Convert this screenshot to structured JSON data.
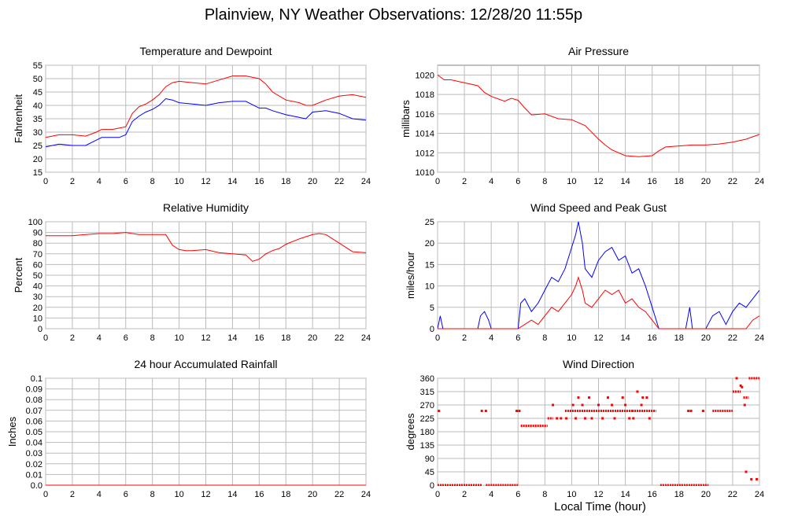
{
  "title": "Plainview, NY Weather Observations: 12/28/20 11:55p",
  "x_axis_label": "Local Time (hour)",
  "colors": {
    "red": "#ff0000",
    "blue": "#0000ff",
    "grid": "#bbbbbb",
    "frame": "#808080"
  },
  "chart_data": [
    {
      "id": "temp",
      "type": "line",
      "title": "Temperature and Dewpoint",
      "ylabel": "Fahrenheit",
      "xlim": [
        0,
        24
      ],
      "ylim": [
        15,
        55
      ],
      "xticks": [
        0,
        2,
        4,
        6,
        8,
        10,
        12,
        14,
        16,
        18,
        20,
        22,
        24
      ],
      "yticks": [
        15,
        20,
        25,
        30,
        35,
        40,
        45,
        50,
        55
      ],
      "grid": true,
      "series": [
        {
          "color": "#ff0000",
          "x": [
            0,
            1,
            2,
            3,
            3.8,
            4.2,
            5,
            5.5,
            6,
            6.5,
            7,
            7.5,
            8,
            8.5,
            9,
            9.5,
            10,
            11,
            12,
            13,
            14,
            15,
            16,
            16.5,
            17,
            18,
            19,
            19.5,
            20,
            21,
            22,
            23,
            24
          ],
          "y": [
            28,
            29,
            29,
            28.5,
            30,
            31,
            31,
            31.5,
            32,
            37,
            39.5,
            40.5,
            42,
            44,
            47,
            48.5,
            49,
            48.5,
            48,
            49.5,
            51,
            51,
            50,
            48,
            45,
            42,
            41,
            40,
            40,
            42,
            43.5,
            44,
            43
          ]
        },
        {
          "color": "#0000ff",
          "x": [
            0,
            1,
            2,
            3,
            3.8,
            4.2,
            5,
            5.5,
            6,
            6.5,
            7,
            7.5,
            8,
            8.5,
            9,
            9.5,
            10,
            11,
            12,
            13,
            14,
            15,
            16,
            16.5,
            17,
            18,
            19,
            19.5,
            20,
            21,
            22,
            23,
            24
          ],
          "y": [
            24.5,
            25.5,
            25,
            25,
            27,
            28,
            28,
            28,
            29,
            34,
            36,
            37.5,
            38.5,
            40,
            42.5,
            42,
            41,
            40.5,
            40,
            41,
            41.5,
            41.5,
            39,
            39,
            38,
            36.5,
            35.5,
            35,
            37.5,
            38,
            37,
            35,
            34.5
          ]
        }
      ]
    },
    {
      "id": "pressure",
      "type": "line",
      "title": "Air Pressure",
      "ylabel": "millibars",
      "xlim": [
        0,
        24
      ],
      "ylim": [
        1010,
        1021
      ],
      "xticks": [
        0,
        2,
        4,
        6,
        8,
        10,
        12,
        14,
        16,
        18,
        20,
        22,
        24
      ],
      "yticks": [
        1010,
        1012,
        1014,
        1016,
        1018,
        1020
      ],
      "grid": true,
      "series": [
        {
          "color": "#ff0000",
          "x": [
            0,
            0.5,
            1,
            2,
            3,
            3.5,
            4,
            5,
            5.5,
            6,
            6.5,
            7,
            8,
            9,
            10,
            10.5,
            11,
            11.5,
            12,
            12.5,
            13,
            14,
            15,
            16,
            16.5,
            17,
            18,
            19,
            20,
            21,
            22,
            23,
            24
          ],
          "y": [
            1020,
            1019.5,
            1019.5,
            1019.2,
            1018.9,
            1018.2,
            1017.8,
            1017.3,
            1017.6,
            1017.4,
            1016.6,
            1015.9,
            1016,
            1015.5,
            1015.4,
            1015.1,
            1014.8,
            1014.1,
            1013.4,
            1012.8,
            1012.3,
            1011.7,
            1011.6,
            1011.7,
            1012.2,
            1012.6,
            1012.7,
            1012.8,
            1012.8,
            1012.9,
            1013.1,
            1013.4,
            1013.9
          ]
        }
      ]
    },
    {
      "id": "humidity",
      "type": "line",
      "title": "Relative Humidity",
      "ylabel": "Percent",
      "xlim": [
        0,
        24
      ],
      "ylim": [
        0,
        100
      ],
      "xticks": [
        0,
        2,
        4,
        6,
        8,
        10,
        12,
        14,
        16,
        18,
        20,
        22,
        24
      ],
      "yticks": [
        0,
        10,
        20,
        30,
        40,
        50,
        60,
        70,
        80,
        90,
        100
      ],
      "grid": true,
      "series": [
        {
          "color": "#ff0000",
          "x": [
            0,
            2,
            3,
            4,
            5,
            6,
            6.5,
            7,
            8,
            9,
            9.5,
            10,
            10.5,
            11,
            12,
            13,
            14,
            15,
            15.5,
            16,
            16.5,
            17,
            17.5,
            18,
            19,
            20,
            20.5,
            21,
            22,
            23,
            24
          ],
          "y": [
            87,
            87,
            88,
            89,
            89,
            90,
            89,
            88,
            88,
            88,
            78,
            74,
            73,
            73,
            74,
            71,
            70,
            69,
            63,
            65,
            70,
            73,
            75,
            79,
            84,
            88,
            89,
            88,
            80,
            72,
            71
          ]
        }
      ]
    },
    {
      "id": "wind",
      "type": "line",
      "title": "Wind Speed and Peak Gust",
      "ylabel": "miles/hour",
      "xlim": [
        0,
        24
      ],
      "ylim": [
        0,
        25
      ],
      "xticks": [
        0,
        2,
        4,
        6,
        8,
        10,
        12,
        14,
        16,
        18,
        20,
        22,
        24
      ],
      "yticks": [
        0,
        5,
        10,
        15,
        20,
        25
      ],
      "grid": true,
      "series": [
        {
          "color": "#0000ff",
          "x": [
            0,
            0.2,
            0.4,
            0.6,
            3,
            3.2,
            3.5,
            3.8,
            4,
            6,
            6.2,
            6.5,
            7,
            7.5,
            8,
            8.5,
            9,
            9.5,
            10,
            10.3,
            10.5,
            10.8,
            11,
            11.5,
            12,
            12.5,
            13,
            13.5,
            14,
            14.5,
            15,
            15.5,
            16,
            16.5,
            17,
            18.5,
            18.8,
            19,
            20,
            20.5,
            21,
            21.5,
            22,
            22.5,
            23,
            23.5,
            24
          ],
          "y": [
            0,
            3,
            0,
            0,
            0,
            3,
            4,
            2,
            0,
            0,
            6,
            7,
            4,
            6,
            9,
            12,
            11,
            14,
            19,
            22,
            25,
            20,
            14,
            12,
            16,
            18,
            19,
            16,
            17,
            13,
            14,
            10,
            5,
            0,
            0,
            0,
            5,
            0,
            0,
            3,
            4,
            1,
            4,
            6,
            5,
            7,
            9
          ]
        },
        {
          "color": "#ff0000",
          "x": [
            0,
            6,
            6.5,
            7,
            7.5,
            8,
            8.5,
            9,
            9.5,
            10,
            10.3,
            10.5,
            10.8,
            11,
            11.5,
            12,
            12.5,
            13,
            13.5,
            14,
            14.5,
            15,
            15.5,
            16,
            16.5,
            17,
            23,
            23.5,
            24
          ],
          "y": [
            0,
            0,
            1,
            2,
            1,
            3,
            5,
            4,
            6,
            8,
            10,
            12,
            9,
            6,
            5,
            7,
            9,
            8,
            9,
            6,
            7,
            5,
            4,
            2,
            0,
            0,
            0,
            2,
            3
          ]
        }
      ]
    },
    {
      "id": "rain",
      "type": "line",
      "title": "24 hour Accumulated Rainfall",
      "ylabel": "Inches",
      "xlim": [
        0,
        24
      ],
      "ylim": [
        0,
        0.1
      ],
      "xticks": [
        0,
        2,
        4,
        6,
        8,
        10,
        12,
        14,
        16,
        18,
        20,
        22,
        24
      ],
      "yticks": [
        "0.0",
        "0.01",
        "0.02",
        "0.03",
        "0.04",
        "0.05",
        "0.06",
        "0.07",
        "0.08",
        "0.09",
        "0.1"
      ],
      "grid": true,
      "series": [
        {
          "color": "#ff0000",
          "x": [
            0,
            24
          ],
          "y": [
            0,
            0
          ]
        }
      ]
    },
    {
      "id": "direction",
      "type": "scatter",
      "title": "Wind Direction",
      "ylabel": "degrees",
      "xlim": [
        0,
        24
      ],
      "ylim": [
        0,
        360
      ],
      "xticks": [
        0,
        2,
        4,
        6,
        8,
        10,
        12,
        14,
        16,
        18,
        20,
        22,
        24
      ],
      "yticks": [
        0,
        45,
        90,
        135,
        180,
        225,
        270,
        315,
        360
      ],
      "grid": true,
      "series": [
        {
          "color": "#ff0000",
          "segments": [
            {
              "x0": 0,
              "x1": 3.3,
              "y": 0
            },
            {
              "x0": 3.6,
              "x1": 6,
              "y": 0
            },
            {
              "x0": 6.2,
              "x1": 8.2,
              "y": 200
            },
            {
              "x0": 8.2,
              "x1": 8.6,
              "y": 225
            },
            {
              "x0": 9.5,
              "x1": 14.5,
              "y": 250
            },
            {
              "x0": 14.5,
              "x1": 16.3,
              "y": 250
            },
            {
              "x0": 16.6,
              "x1": 20.2,
              "y": 0
            },
            {
              "x0": 20.5,
              "x1": 22,
              "y": 250
            },
            {
              "x0": 22,
              "x1": 22.6,
              "y": 315
            },
            {
              "x0": 23.2,
              "x1": 24,
              "y": 360
            },
            {
              "x0": 22.8,
              "x1": 23.2,
              "y": 295
            }
          ],
          "points": [
            [
              0.1,
              250
            ],
            [
              3.3,
              250
            ],
            [
              3.6,
              250
            ],
            [
              5.9,
              250
            ],
            [
              6.1,
              250
            ],
            [
              8.6,
              270
            ],
            [
              8.9,
              225
            ],
            [
              9.2,
              225
            ],
            [
              9.6,
              225
            ],
            [
              10.1,
              270
            ],
            [
              10.3,
              225
            ],
            [
              10.5,
              295
            ],
            [
              10.8,
              270
            ],
            [
              11.0,
              225
            ],
            [
              11.3,
              295
            ],
            [
              11.5,
              225
            ],
            [
              12.0,
              270
            ],
            [
              12.3,
              225
            ],
            [
              12.7,
              295
            ],
            [
              13.0,
              270
            ],
            [
              13.2,
              225
            ],
            [
              13.8,
              295
            ],
            [
              14.0,
              270
            ],
            [
              14.3,
              225
            ],
            [
              14.6,
              225
            ],
            [
              14.9,
              315
            ],
            [
              15.2,
              270
            ],
            [
              15.3,
              295
            ],
            [
              15.6,
              295
            ],
            [
              15.8,
              225
            ],
            [
              18.7,
              250
            ],
            [
              18.9,
              250
            ],
            [
              19.8,
              250
            ],
            [
              22.3,
              360
            ],
            [
              22.6,
              335
            ],
            [
              22.7,
              330
            ],
            [
              23.0,
              45
            ],
            [
              23.4,
              20
            ],
            [
              23.8,
              20
            ],
            [
              22.9,
              270
            ]
          ]
        }
      ]
    }
  ]
}
